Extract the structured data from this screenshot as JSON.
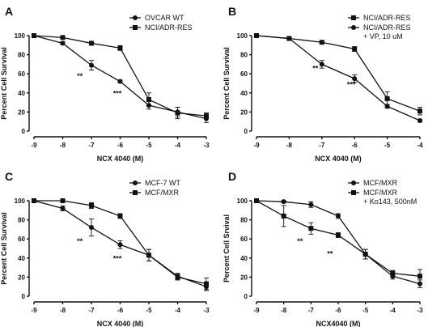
{
  "chart_data": [
    {
      "panel": "A",
      "type": "line",
      "ylabel": "Percent Cell Survival",
      "xlabel": "NCX 4040 (M)",
      "xlim": [
        -9,
        -3
      ],
      "ylim": [
        0,
        100
      ],
      "xticks": [
        -9,
        -8,
        -7,
        -6,
        -5,
        -4,
        -3
      ],
      "yticks": [
        0,
        20,
        40,
        60,
        80,
        100
      ],
      "legend_position": "top-right",
      "series": [
        {
          "name": "OVCAR WT",
          "marker": "circle",
          "x": [
            -9,
            -8,
            -7,
            -6,
            -5,
            -4,
            -3
          ],
          "y": [
            100,
            92,
            69,
            52,
            27,
            20,
            13
          ],
          "err": [
            0,
            1.5,
            5,
            1.5,
            4,
            5,
            4
          ]
        },
        {
          "name": "NCI/ADR-RES",
          "marker": "square",
          "x": [
            -9,
            -8,
            -7,
            -6,
            -5,
            -4,
            -3
          ],
          "y": [
            100,
            98,
            92,
            87,
            33,
            19,
            16
          ],
          "err": [
            0,
            1.5,
            1.5,
            2.5,
            7,
            6,
            3
          ]
        }
      ],
      "annotations": [
        {
          "text": "**",
          "x": -7.4,
          "y": 55
        },
        {
          "text": "***",
          "x": -6.1,
          "y": 37
        }
      ]
    },
    {
      "panel": "B",
      "type": "line",
      "ylabel": "Percent Cell Survival",
      "xlabel": "NCX 4040 (M)",
      "xlim": [
        -9,
        -4
      ],
      "ylim": [
        0,
        100
      ],
      "xticks": [
        -9,
        -8,
        -7,
        -6,
        -5,
        -4
      ],
      "yticks": [
        0,
        20,
        40,
        60,
        80,
        100
      ],
      "legend_position": "top-right",
      "series": [
        {
          "name": "NCI/ADR-RES",
          "marker": "square",
          "x": [
            -9,
            -8,
            -7,
            -6,
            -5,
            -4
          ],
          "y": [
            100,
            97,
            93,
            86,
            34,
            21
          ],
          "err": [
            0,
            1.5,
            1.5,
            2.5,
            7,
            4
          ]
        },
        {
          "name": "NCI/ADR-RES",
          "name2": "+ VP, 10 uM",
          "marker": "circle",
          "x": [
            -9,
            -8,
            -7,
            -6,
            -5,
            -4
          ],
          "y": [
            100,
            97,
            70,
            55,
            26,
            11
          ],
          "err": [
            0,
            1.5,
            4,
            4,
            2,
            1.5
          ]
        }
      ],
      "annotations": [
        {
          "text": "**",
          "x": -7.2,
          "y": 63
        },
        {
          "text": "***",
          "x": -6.1,
          "y": 46
        }
      ]
    },
    {
      "panel": "C",
      "type": "line",
      "ylabel": "Percent Cell Survival",
      "xlabel": "NCX 4040 (M)",
      "xlim": [
        -9,
        -3
      ],
      "ylim": [
        0,
        100
      ],
      "xticks": [
        -9,
        -8,
        -7,
        -6,
        -5,
        -4,
        -3
      ],
      "yticks": [
        0,
        20,
        40,
        60,
        80,
        100
      ],
      "legend_position": "top-right",
      "series": [
        {
          "name": "MCF-7 WT",
          "marker": "circle",
          "x": [
            -9,
            -8,
            -7,
            -6,
            -5,
            -4,
            -3
          ],
          "y": [
            100,
            92,
            72,
            54,
            43,
            21,
            10
          ],
          "err": [
            0,
            2.5,
            9,
            4,
            6,
            3,
            4
          ]
        },
        {
          "name": "MCF/MXR",
          "marker": "square",
          "x": [
            -9,
            -8,
            -7,
            -6,
            -5,
            -4,
            -3
          ],
          "y": [
            100,
            100,
            95,
            84,
            43,
            20,
            13
          ],
          "err": [
            0,
            1,
            3,
            2.5,
            6,
            3,
            6
          ]
        }
      ],
      "annotations": [
        {
          "text": "**",
          "x": -7.4,
          "y": 55
        },
        {
          "text": "***",
          "x": -6.1,
          "y": 37
        }
      ]
    },
    {
      "panel": "D",
      "type": "line",
      "ylabel": "Percent Cell Srvival",
      "xlabel": "NCX4040 (M)",
      "xlim": [
        -9,
        -3
      ],
      "ylim": [
        0,
        100
      ],
      "xticks": [
        -9,
        -8,
        -7,
        -6,
        -5,
        -4,
        -3
      ],
      "yticks": [
        0,
        20,
        40,
        60,
        80,
        100
      ],
      "legend_position": "top-right",
      "series": [
        {
          "name": "MCF/MXR",
          "marker": "circle",
          "x": [
            -9,
            -8,
            -7,
            -6,
            -5,
            -4,
            -3
          ],
          "y": [
            100,
            99,
            96,
            84,
            44,
            21,
            13
          ],
          "err": [
            0,
            1,
            3,
            2.5,
            5,
            3,
            4
          ]
        },
        {
          "name": "MCF/MXR",
          "name2": "+ Ko143, 500nM",
          "marker": "square",
          "x": [
            -9,
            -8,
            -7,
            -6,
            -5,
            -4,
            -3
          ],
          "y": [
            100,
            84,
            71,
            64,
            44,
            24,
            21
          ],
          "err": [
            0,
            11,
            6,
            2.5,
            5,
            3,
            7
          ]
        }
      ],
      "annotations": [
        {
          "text": "**",
          "x": -7.4,
          "y": 55
        },
        {
          "text": "**",
          "x": -6.3,
          "y": 42
        }
      ]
    }
  ]
}
